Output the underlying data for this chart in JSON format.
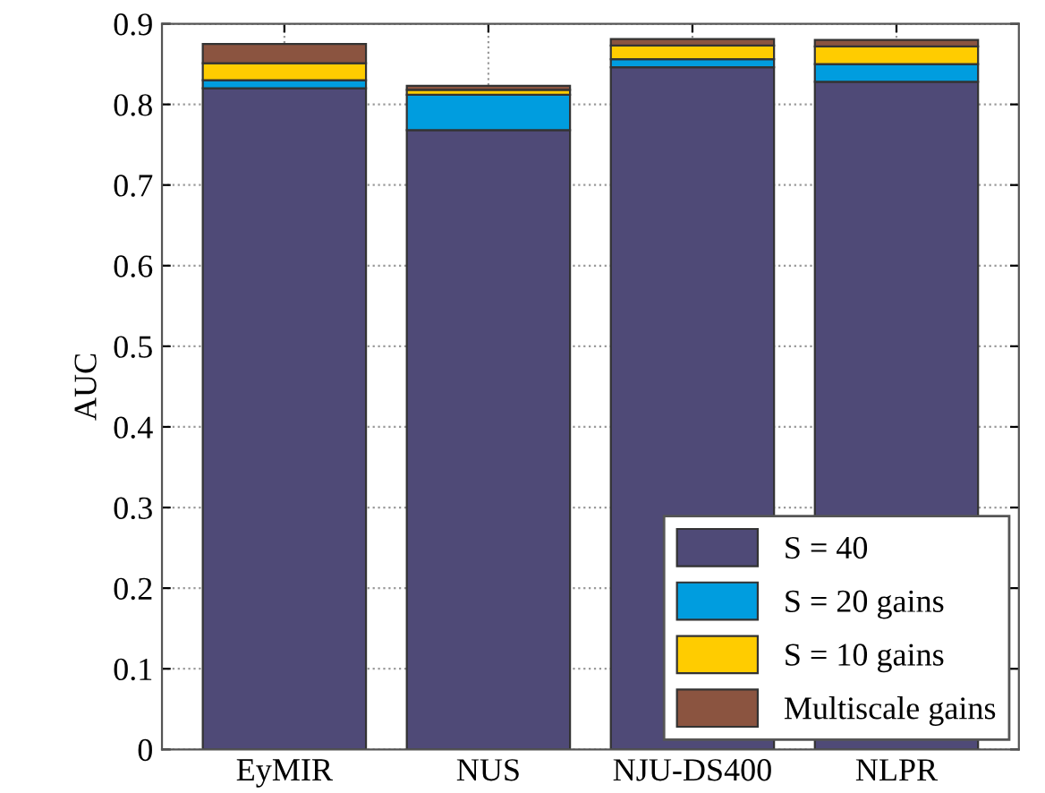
{
  "chart_data": {
    "type": "bar",
    "stacked": true,
    "ylabel": "AUC",
    "categories": [
      "EyMIR",
      "NUS",
      "NJU-DS400",
      "NLPR"
    ],
    "series": [
      {
        "name": "S = 40",
        "color": "#4f4a77",
        "values": [
          0.82,
          0.768,
          0.846,
          0.828
        ]
      },
      {
        "name": "S = 20 gains",
        "color": "#009ddf",
        "values": [
          0.01,
          0.044,
          0.01,
          0.022
        ]
      },
      {
        "name": "S = 10 gains",
        "color": "#ffcc00",
        "values": [
          0.021,
          0.006,
          0.017,
          0.022
        ]
      },
      {
        "name": "Multiscale gains",
        "color": "#8b5440",
        "values": [
          0.024,
          0.005,
          0.008,
          0.008
        ]
      }
    ],
    "ylim": [
      0,
      0.9
    ],
    "yticks": [
      0,
      0.1,
      0.2,
      0.3,
      0.4,
      0.5,
      0.6,
      0.7,
      0.8,
      0.9
    ],
    "grid": true,
    "legend": "bottom right"
  }
}
